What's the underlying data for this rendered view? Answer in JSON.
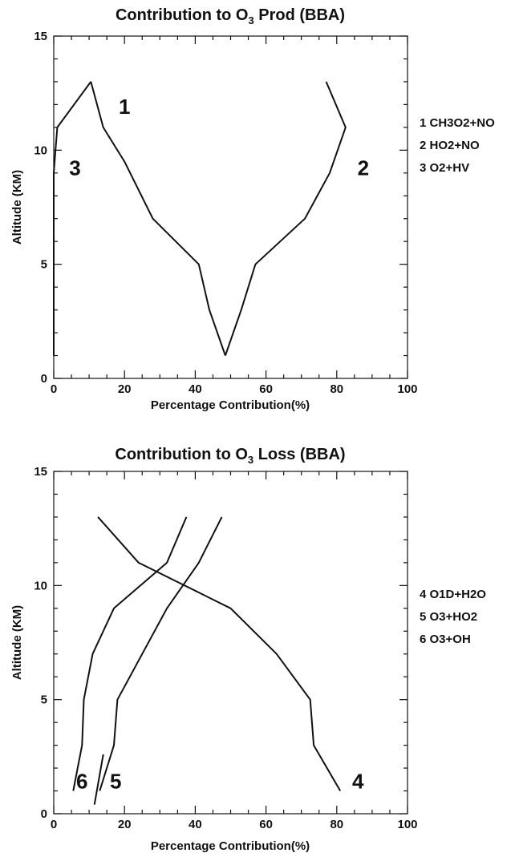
{
  "chart_data": [
    {
      "type": "line",
      "title": "Contribution to O",
      "title_sub": "3",
      "title_rest": " Prod (BBA)",
      "xlabel": "Percentage Contribution(%)",
      "ylabel": "Altitude (KM)",
      "xlim": [
        0,
        100
      ],
      "ylim": [
        0,
        15
      ],
      "xticks": [
        0,
        20,
        40,
        60,
        80,
        100
      ],
      "yticks": [
        0,
        5,
        10,
        15
      ],
      "grid": false,
      "legend_position": "right",
      "legend": [
        "1 CH3O2+NO",
        "2 HO2+NO",
        "3 O2+HV"
      ],
      "series": [
        {
          "label": "1",
          "label_at": [
            20,
            11.6
          ],
          "points": [
            [
              48.5,
              1
            ],
            [
              44,
              3
            ],
            [
              41,
              5
            ],
            [
              28,
              7
            ],
            [
              20,
              9.5
            ],
            [
              14,
              11
            ],
            [
              10.5,
              13
            ]
          ]
        },
        {
          "label": "2",
          "label_at": [
            87.5,
            8.9
          ],
          "points": [
            [
              48.5,
              1
            ],
            [
              53,
              3
            ],
            [
              57,
              5
            ],
            [
              71,
              7
            ],
            [
              78,
              9
            ],
            [
              82.5,
              11
            ],
            [
              77,
              13
            ]
          ]
        },
        {
          "label": "3",
          "label_at": [
            6,
            8.9
          ],
          "points": [
            [
              0,
              1
            ],
            [
              0,
              3
            ],
            [
              0,
              5
            ],
            [
              0,
              7
            ],
            [
              0,
              9
            ],
            [
              1,
              11
            ],
            [
              10.5,
              13
            ]
          ]
        }
      ]
    },
    {
      "type": "line",
      "title": "Contribution to O",
      "title_sub": "3",
      "title_rest": " Loss (BBA)",
      "xlabel": "Percentage Contribution(%)",
      "ylabel": "Altitude (KM)",
      "xlim": [
        0,
        100
      ],
      "ylim": [
        0,
        15
      ],
      "xticks": [
        0,
        20,
        40,
        60,
        80,
        100
      ],
      "yticks": [
        0,
        5,
        10,
        15
      ],
      "grid": false,
      "legend_position": "right",
      "legend": [
        "4 O1D+H2O",
        "5 O3+HO2",
        "6 O3+OH"
      ],
      "series": [
        {
          "label": "4",
          "label_at": [
            86,
            1.1
          ],
          "points": [
            [
              81,
              1
            ],
            [
              73.5,
              3
            ],
            [
              72.5,
              5
            ],
            [
              63,
              7
            ],
            [
              50,
              9
            ],
            [
              24,
              11
            ],
            [
              12.5,
              13
            ]
          ]
        },
        {
          "label": "5",
          "label_at": [
            17.5,
            1.1
          ],
          "points": [
            [
              13,
              1
            ],
            [
              17,
              3
            ],
            [
              18,
              5
            ],
            [
              25,
              7
            ],
            [
              32,
              9
            ],
            [
              41,
              11
            ],
            [
              47.5,
              13
            ]
          ]
        },
        {
          "label": "6",
          "label_at": [
            8,
            1.1
          ],
          "points": [
            [
              5.5,
              1
            ],
            [
              8,
              3
            ],
            [
              8.5,
              5
            ],
            [
              11,
              7
            ],
            [
              17,
              9
            ],
            [
              32,
              11
            ],
            [
              37.5,
              13
            ]
          ]
        }
      ]
    }
  ]
}
